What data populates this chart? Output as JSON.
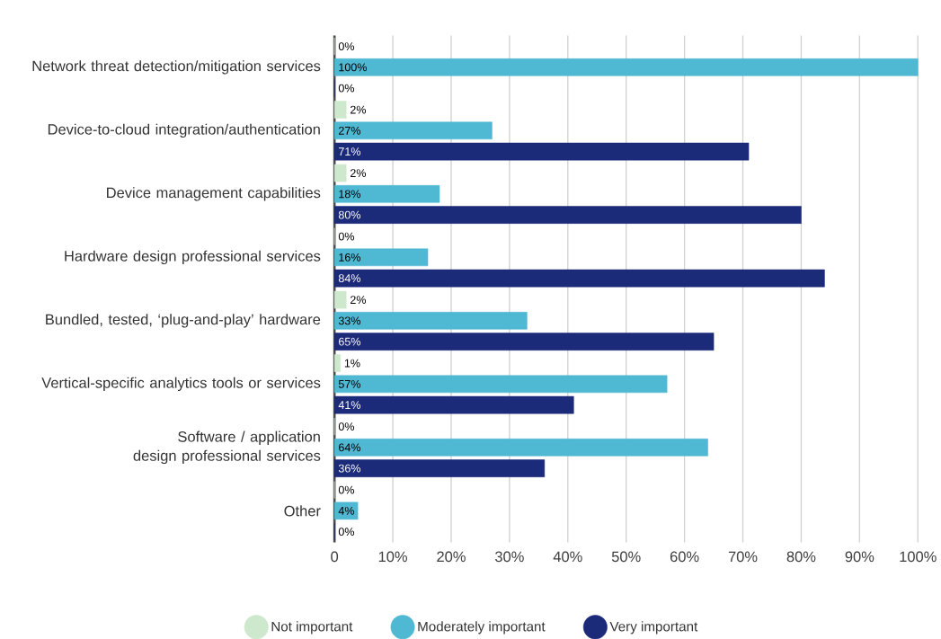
{
  "chart_data": {
    "type": "bar",
    "orientation": "horizontal",
    "categories": [
      "Network threat detection/mitigation services",
      "Device-to-cloud integration/authentication",
      "Device management capabilities",
      "Hardware design professional services",
      "Bundled, tested, ‘plug-and-play’ hardware",
      "Vertical-specific analytics tools or services",
      "Software / application design professional services",
      "Other"
    ],
    "series": [
      {
        "name": "Not important",
        "color": "#cde8cc",
        "values": [
          0,
          2,
          2,
          0,
          2,
          1,
          0,
          0
        ],
        "value_labels": [
          "0%",
          "2%",
          "2%",
          "0%",
          "2%",
          "1%",
          "0%",
          "0%"
        ]
      },
      {
        "name": "Moderately important",
        "color": "#4fb8d3",
        "values": [
          100,
          27,
          18,
          16,
          33,
          57,
          64,
          4
        ],
        "value_labels": [
          "100%",
          "27%",
          "18%",
          "16%",
          "33%",
          "57%",
          "64%",
          "4%"
        ]
      },
      {
        "name": "Very important",
        "color": "#1c2a7a",
        "values": [
          0,
          71,
          80,
          84,
          65,
          41,
          36,
          0
        ],
        "value_labels": [
          "0%",
          "71%",
          "80%",
          "84%",
          "65%",
          "41%",
          "36%",
          "0%"
        ]
      }
    ],
    "xlim": [
      0,
      100
    ],
    "xticks": [
      {
        "value": 0,
        "label": "0"
      },
      {
        "value": 10,
        "label": "10%"
      },
      {
        "value": 20,
        "label": "20%"
      },
      {
        "value": 30,
        "label": "30%"
      },
      {
        "value": 40,
        "label": "40%"
      },
      {
        "value": 50,
        "label": "50%"
      },
      {
        "value": 60,
        "label": "60%"
      },
      {
        "value": 70,
        "label": "70%"
      },
      {
        "value": 80,
        "label": "80%"
      },
      {
        "value": 90,
        "label": "90%"
      },
      {
        "value": 100,
        "label": "100%"
      }
    ],
    "grid": "x",
    "legend": "bottom"
  }
}
